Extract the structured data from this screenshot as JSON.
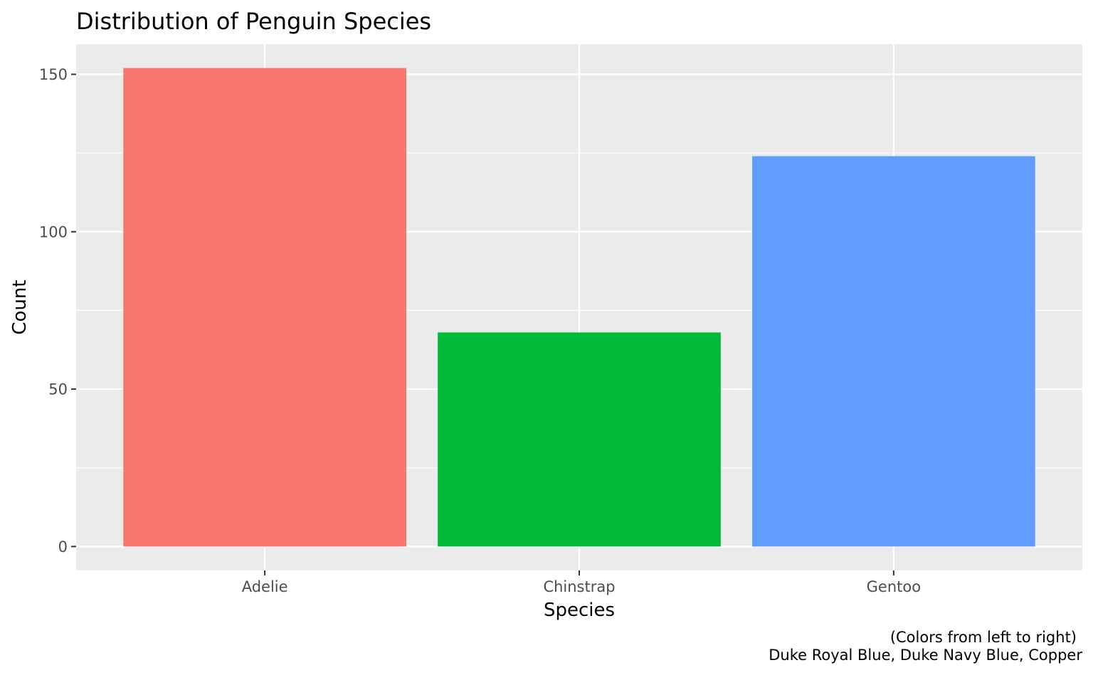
{
  "chart_data": {
    "type": "bar",
    "title": "Distribution of Penguin Species",
    "xlabel": "Species",
    "ylabel": "Count",
    "categories": [
      "Adelie",
      "Chinstrap",
      "Gentoo"
    ],
    "values": [
      152,
      68,
      124
    ],
    "ylim": [
      -7.6,
      159.6
    ],
    "y_ticks": [
      0,
      50,
      100,
      150
    ],
    "y_tick_labels": [
      "0",
      "50",
      "100",
      "150"
    ],
    "grid": true,
    "legend": "none",
    "colors": [
      "#F8766D",
      "#00BA38",
      "#619CFF"
    ],
    "panel_background": "#EBEBEB",
    "gridline_color": "#FFFFFF",
    "caption": {
      "line1": "(Colors from left to right)",
      "line2": "Duke Royal Blue, Duke Navy Blue, Copper"
    }
  }
}
